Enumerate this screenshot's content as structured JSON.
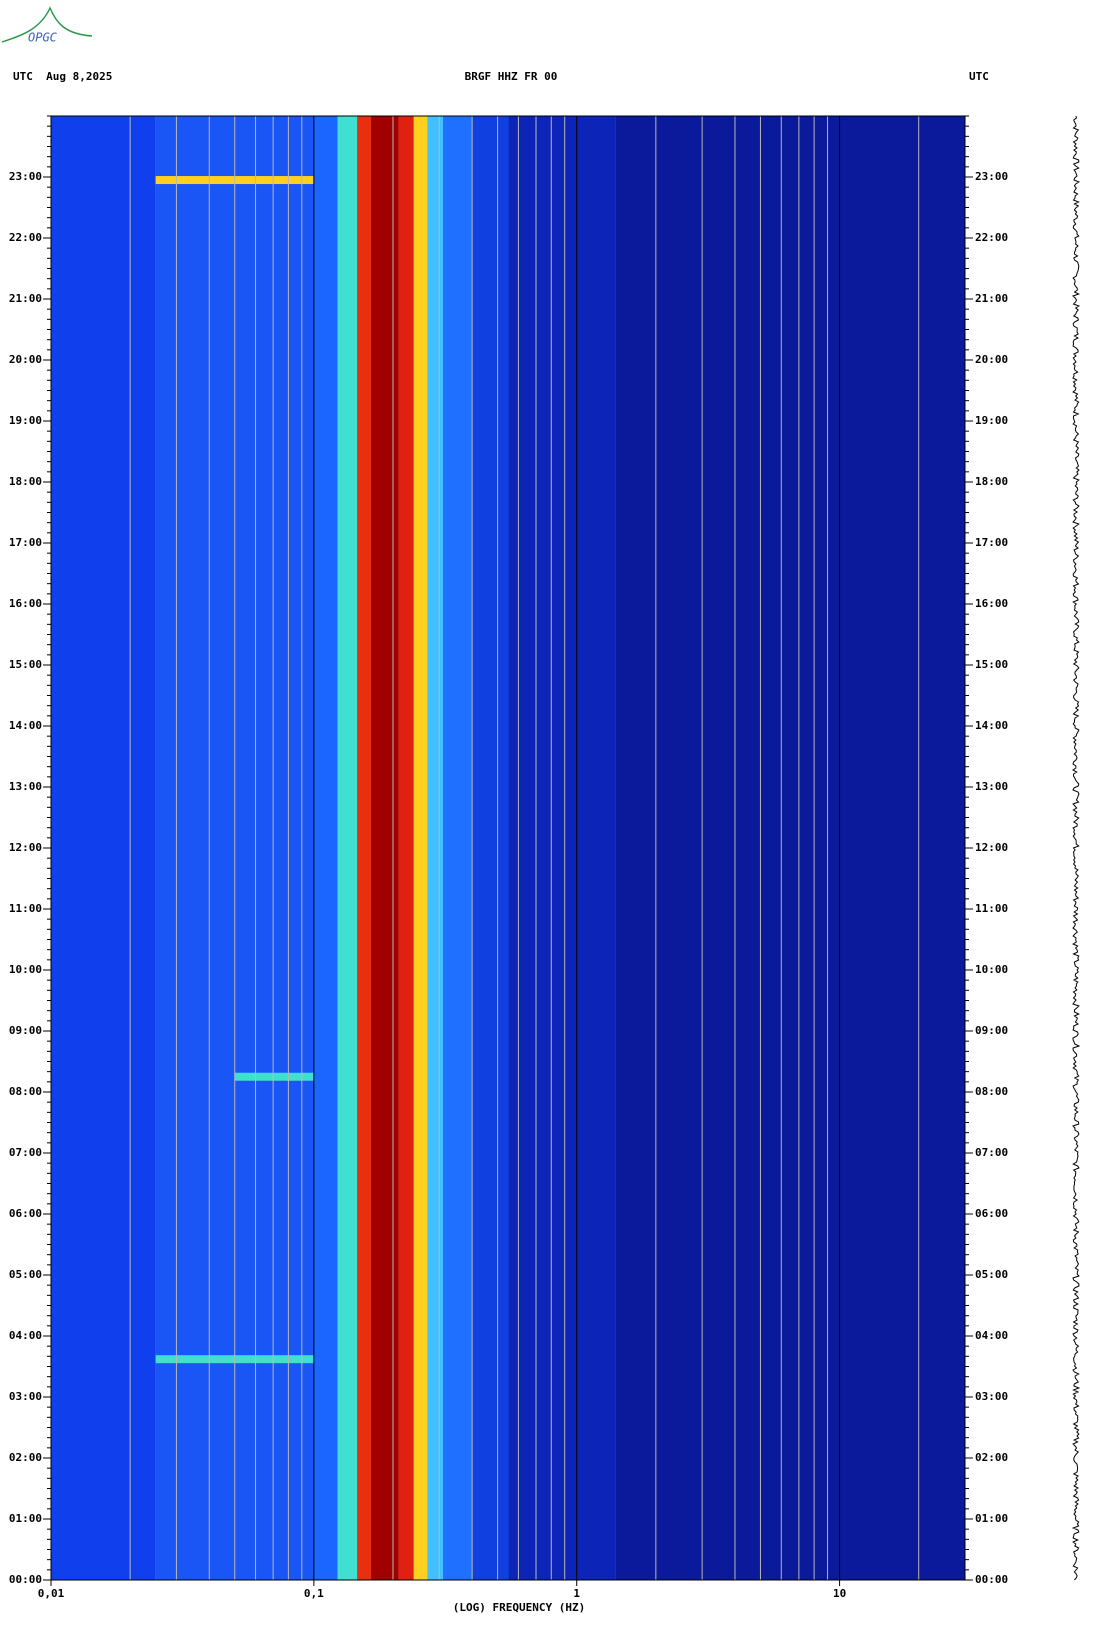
{
  "logo": "OPGC",
  "chart_data": {
    "type": "spectrogram",
    "title": "BRGF HHZ FR 00",
    "date_label": "UTC  Aug 8,2025",
    "right_label": "UTC",
    "xlabel": "(LOG) FREQUENCY (HZ)",
    "xscale": "log",
    "xlim": [
      0.01,
      30
    ],
    "xticks": [
      {
        "value": 0.01,
        "label": "0,01"
      },
      {
        "value": 0.1,
        "label": "0,1"
      },
      1,
      10
    ],
    "xminor": [
      0.02,
      0.03,
      0.04,
      0.05,
      0.06,
      0.07,
      0.08,
      0.09,
      0.2,
      0.3,
      0.4,
      0.5,
      0.6,
      0.7,
      0.8,
      0.9,
      2,
      3,
      4,
      5,
      6,
      7,
      8,
      9,
      20
    ],
    "ylim": [
      0,
      24
    ],
    "yticks": [
      {
        "value": 0,
        "label": "00:00"
      },
      {
        "value": 1,
        "label": "01:00"
      },
      {
        "value": 2,
        "label": "02:00"
      },
      {
        "value": 3,
        "label": "03:00"
      },
      {
        "value": 4,
        "label": "04:00"
      },
      {
        "value": 5,
        "label": "05:00"
      },
      {
        "value": 6,
        "label": "06:00"
      },
      {
        "value": 7,
        "label": "07:00"
      },
      {
        "value": 8,
        "label": "08:00"
      },
      {
        "value": 9,
        "label": "09:00"
      },
      {
        "value": 10,
        "label": "10:00"
      },
      {
        "value": 11,
        "label": "11:00"
      },
      {
        "value": 12,
        "label": "12:00"
      },
      {
        "value": 13,
        "label": "13:00"
      },
      {
        "value": 14,
        "label": "14:00"
      },
      {
        "value": 15,
        "label": "15:00"
      },
      {
        "value": 16,
        "label": "16:00"
      },
      {
        "value": 17,
        "label": "17:00"
      },
      {
        "value": 18,
        "label": "18:00"
      },
      {
        "value": 19,
        "label": "19:00"
      },
      {
        "value": 20,
        "label": "20:00"
      },
      {
        "value": 21,
        "label": "21:00"
      },
      {
        "value": 22,
        "label": "22:00"
      },
      {
        "value": 23,
        "label": "23:00"
      }
    ],
    "yminor_per_major": 6,
    "bands": {
      "edges": [
        0.01,
        0.025,
        0.1,
        0.123,
        0.146,
        0.165,
        0.21,
        0.24,
        0.27,
        0.31,
        0.4,
        0.55,
        1.4,
        30
      ],
      "colors": [
        "#1040ee",
        "#1a55f5",
        "#1a66ff",
        "#40e0d0",
        "#e83010",
        "#a00000",
        "#e02010",
        "#ffd020",
        "#40c0ff",
        "#2070ff",
        "#1040e0",
        "#0c24b8",
        "#0a1a9a"
      ]
    },
    "events": [
      {
        "time": 22.95,
        "f": [
          0.025,
          0.1
        ],
        "color": "#ffd020"
      },
      {
        "time": 8.25,
        "f": [
          0.05,
          0.1
        ],
        "color": "#40e0d0"
      },
      {
        "time": 3.62,
        "f": [
          0.025,
          0.1
        ],
        "color": "#40e0d0"
      }
    ]
  }
}
